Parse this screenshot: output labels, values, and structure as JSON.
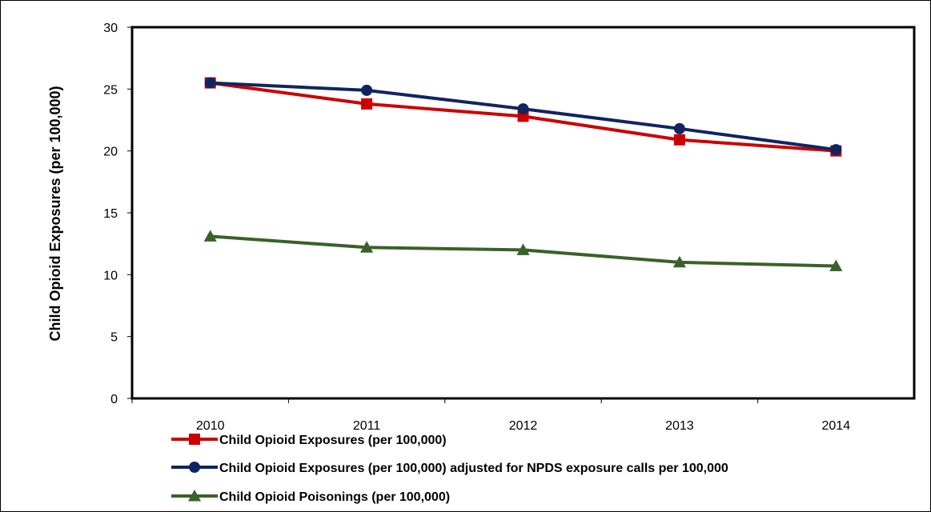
{
  "chart_data": {
    "type": "line",
    "title": "",
    "xlabel": "",
    "ylabel": "Child Opioid Exposures (per 100,000)",
    "categories": [
      "2010",
      "2011",
      "2012",
      "2013",
      "2014"
    ],
    "yticks": [
      "0",
      "5",
      "10",
      "15",
      "20",
      "25",
      "30"
    ],
    "ylim": [
      0,
      30
    ],
    "grid": false,
    "legend_position": "bottom-left",
    "series": [
      {
        "name": "Child Opioid Exposures (per 100,000)",
        "color": "#cc0000",
        "marker": "square",
        "values": [
          25.5,
          23.8,
          22.8,
          20.9,
          20.0
        ]
      },
      {
        "name": "Child Opioid Exposures (per 100,000) adjusted for NPDS exposure calls per 100,000",
        "color": "#0f2560",
        "marker": "circle",
        "values": [
          25.5,
          24.9,
          23.4,
          21.8,
          20.1
        ]
      },
      {
        "name": "Child Opioid Poisonings (per 100,000)",
        "color": "#3a6128",
        "marker": "triangle",
        "values": [
          13.1,
          12.2,
          12.0,
          11.0,
          10.7
        ]
      }
    ]
  }
}
